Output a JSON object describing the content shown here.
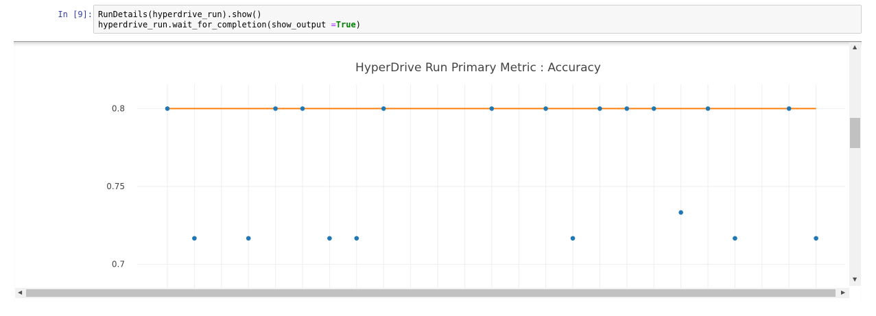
{
  "cell": {
    "prompt": "In [9]:",
    "line1": "RunDetails(hyperdrive_run).show()",
    "line2_a": "hyperdrive_run.wait_for_completion(show_output ",
    "line2_op": "=",
    "line2_kw": "True",
    "line2_c": ")"
  },
  "chart_data": {
    "type": "scatter",
    "title": "HyperDrive Run Primary Metric : Accuracy",
    "xlabel": "",
    "ylabel": "",
    "ylim": [
      0.68,
      0.82
    ],
    "y_ticks": [
      0.7,
      0.75,
      0.8
    ],
    "y_tick_labels": [
      "0.7",
      "0.75",
      "0.8"
    ],
    "grid": true,
    "colors": {
      "points": "#1f77b4",
      "best_line": "#ff7f0e"
    },
    "series": [
      {
        "values": [
          0.8,
          0.7167,
          0.7167,
          0.8,
          0.8,
          0.7167,
          0.7167,
          0.8,
          0.8,
          0.8,
          0.7167,
          0.8,
          0.8,
          0.8,
          0.7333,
          0.8,
          0.7167,
          0.8,
          0.7167
        ]
      },
      {
        "values": [
          0.8,
          0.8
        ]
      }
    ],
    "x": [
      0,
      1,
      3,
      4,
      5,
      6,
      7,
      8,
      12,
      14,
      15,
      16,
      17,
      18,
      19,
      20,
      21,
      23,
      24
    ]
  },
  "icons": {
    "scroll_up": "arrow-up-icon",
    "scroll_down": "arrow-down-icon",
    "scroll_left": "arrow-left-icon",
    "scroll_right": "arrow-right-icon"
  }
}
